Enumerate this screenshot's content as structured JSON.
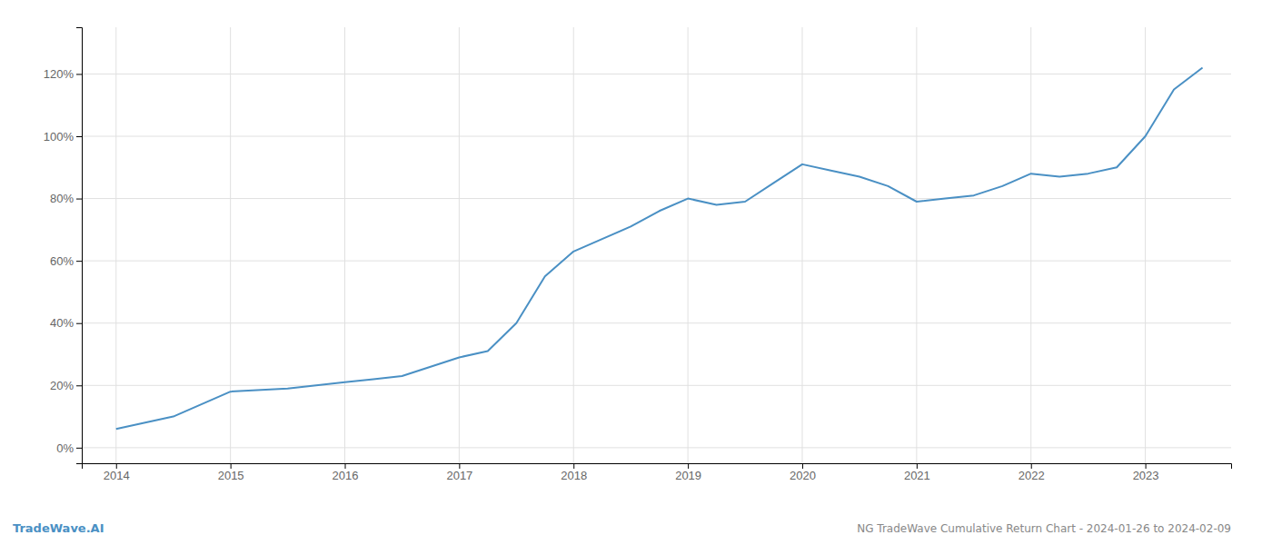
{
  "chart_data": {
    "type": "line",
    "title": "NG TradeWave Cumulative Return Chart - 2024-01-26 to 2024-02-09",
    "annotations": [
      "TradeWave.AI"
    ],
    "color": "#4a90c4",
    "x": [
      2014,
      2014.5,
      2015,
      2015.5,
      2016,
      2016.25,
      2016.5,
      2017,
      2017.25,
      2017.5,
      2017.75,
      2018,
      2018.25,
      2018.5,
      2018.75,
      2019,
      2019.25,
      2019.5,
      2019.75,
      2020,
      2020.25,
      2020.5,
      2020.75,
      2021,
      2021.25,
      2021.5,
      2021.75,
      2022,
      2022.25,
      2022.5,
      2022.75,
      2023,
      2023.25,
      2023.5
    ],
    "values": [
      6,
      10,
      18,
      19,
      21,
      22,
      23,
      29,
      31,
      40,
      55,
      63,
      67,
      71,
      76,
      80,
      78,
      79,
      85,
      91,
      89,
      87,
      84,
      79,
      80,
      81,
      84,
      88,
      87,
      88,
      90,
      100,
      115,
      122
    ],
    "xlim": [
      2013.7,
      2023.75
    ],
    "ylim": [
      -5,
      135
    ],
    "xticks": [
      2014,
      2015,
      2016,
      2017,
      2018,
      2019,
      2020,
      2021,
      2022,
      2023
    ],
    "yticks": [
      {
        "value": 0,
        "label": "0%"
      },
      {
        "value": 20,
        "label": "20%"
      },
      {
        "value": 40,
        "label": "40%"
      },
      {
        "value": 60,
        "label": "60%"
      },
      {
        "value": 80,
        "label": "80%"
      },
      {
        "value": 100,
        "label": "100%"
      },
      {
        "value": 120,
        "label": "120%"
      }
    ],
    "grid": true
  }
}
